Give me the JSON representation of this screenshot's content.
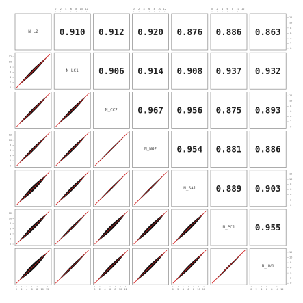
{
  "chart_data": {
    "type": "pairs",
    "variables": [
      "N_L2",
      "N_LC1",
      "N_CC2",
      "N_NO2",
      "N_SA1",
      "N_PC1",
      "N_UV1"
    ],
    "upper": [
      [
        0.91,
        0.912,
        0.92,
        0.876,
        0.886,
        0.863
      ],
      [
        0.906,
        0.914,
        0.908,
        0.937,
        0.932
      ],
      [
        0.967,
        0.956,
        0.875,
        0.893
      ],
      [
        0.954,
        0.881,
        0.886
      ],
      [
        0.889,
        0.903
      ],
      [
        0.955
      ]
    ],
    "value_labels": [
      [
        "0.910",
        "0.912",
        "0.920",
        "0.876",
        "0.886",
        "0.863"
      ],
      [
        "0.906",
        "0.914",
        "0.908",
        "0.937",
        "0.932"
      ],
      [
        "0.967",
        "0.956",
        "0.875",
        "0.893"
      ],
      [
        "0.954",
        "0.881",
        "0.886"
      ],
      [
        "0.889",
        "0.903"
      ],
      [
        "0.955"
      ]
    ],
    "lim": [
      0,
      13
    ],
    "ticks": [
      0,
      2,
      4,
      6,
      8,
      10,
      12
    ],
    "point_color": "#111111",
    "line_color": "#d62020"
  }
}
